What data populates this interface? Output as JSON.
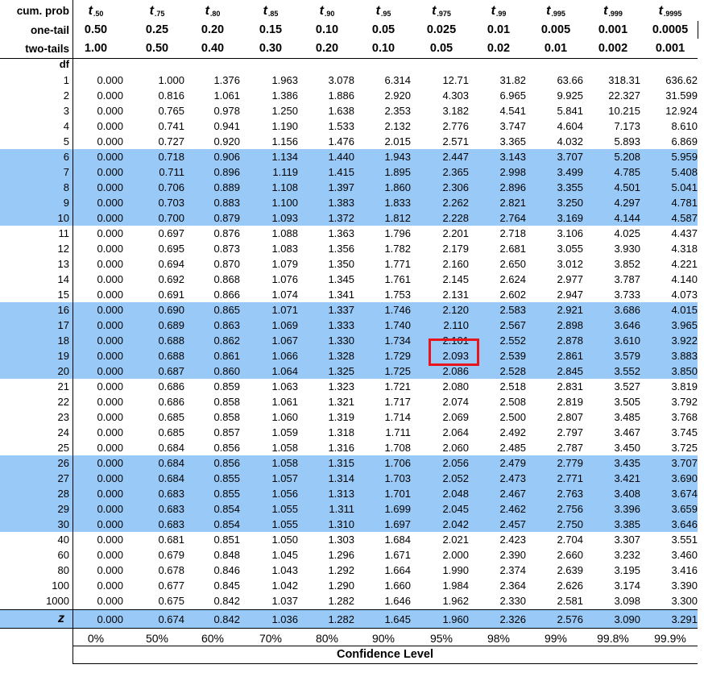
{
  "header": {
    "cum_prob_label": "cum. prob",
    "one_tail_label": "one-tail",
    "two_tails_label": "two-tails",
    "df_label": "df",
    "t_symbol": "t",
    "t_subscripts": [
      ".50",
      ".75",
      ".80",
      ".85",
      ".90",
      ".95",
      ".975",
      ".99",
      ".995",
      ".999",
      ".9995"
    ],
    "one_tail": [
      "0.50",
      "0.25",
      "0.20",
      "0.15",
      "0.10",
      "0.05",
      "0.025",
      "0.01",
      "0.005",
      "0.001",
      "0.0005"
    ],
    "two_tails": [
      "1.00",
      "0.50",
      "0.40",
      "0.30",
      "0.20",
      "0.10",
      "0.05",
      "0.02",
      "0.01",
      "0.002",
      "0.001"
    ]
  },
  "rows": [
    {
      "df": "1",
      "v": [
        "0.000",
        "1.000",
        "1.376",
        "1.963",
        "3.078",
        "6.314",
        "12.71",
        "31.82",
        "63.66",
        "318.31",
        "636.62"
      ]
    },
    {
      "df": "2",
      "v": [
        "0.000",
        "0.816",
        "1.061",
        "1.386",
        "1.886",
        "2.920",
        "4.303",
        "6.965",
        "9.925",
        "22.327",
        "31.599"
      ]
    },
    {
      "df": "3",
      "v": [
        "0.000",
        "0.765",
        "0.978",
        "1.250",
        "1.638",
        "2.353",
        "3.182",
        "4.541",
        "5.841",
        "10.215",
        "12.924"
      ]
    },
    {
      "df": "4",
      "v": [
        "0.000",
        "0.741",
        "0.941",
        "1.190",
        "1.533",
        "2.132",
        "2.776",
        "3.747",
        "4.604",
        "7.173",
        "8.610"
      ]
    },
    {
      "df": "5",
      "v": [
        "0.000",
        "0.727",
        "0.920",
        "1.156",
        "1.476",
        "2.015",
        "2.571",
        "3.365",
        "4.032",
        "5.893",
        "6.869"
      ]
    },
    {
      "df": "6",
      "v": [
        "0.000",
        "0.718",
        "0.906",
        "1.134",
        "1.440",
        "1.943",
        "2.447",
        "3.143",
        "3.707",
        "5.208",
        "5.959"
      ]
    },
    {
      "df": "7",
      "v": [
        "0.000",
        "0.711",
        "0.896",
        "1.119",
        "1.415",
        "1.895",
        "2.365",
        "2.998",
        "3.499",
        "4.785",
        "5.408"
      ]
    },
    {
      "df": "8",
      "v": [
        "0.000",
        "0.706",
        "0.889",
        "1.108",
        "1.397",
        "1.860",
        "2.306",
        "2.896",
        "3.355",
        "4.501",
        "5.041"
      ]
    },
    {
      "df": "9",
      "v": [
        "0.000",
        "0.703",
        "0.883",
        "1.100",
        "1.383",
        "1.833",
        "2.262",
        "2.821",
        "3.250",
        "4.297",
        "4.781"
      ]
    },
    {
      "df": "10",
      "v": [
        "0.000",
        "0.700",
        "0.879",
        "1.093",
        "1.372",
        "1.812",
        "2.228",
        "2.764",
        "3.169",
        "4.144",
        "4.587"
      ]
    },
    {
      "df": "11",
      "v": [
        "0.000",
        "0.697",
        "0.876",
        "1.088",
        "1.363",
        "1.796",
        "2.201",
        "2.718",
        "3.106",
        "4.025",
        "4.437"
      ]
    },
    {
      "df": "12",
      "v": [
        "0.000",
        "0.695",
        "0.873",
        "1.083",
        "1.356",
        "1.782",
        "2.179",
        "2.681",
        "3.055",
        "3.930",
        "4.318"
      ]
    },
    {
      "df": "13",
      "v": [
        "0.000",
        "0.694",
        "0.870",
        "1.079",
        "1.350",
        "1.771",
        "2.160",
        "2.650",
        "3.012",
        "3.852",
        "4.221"
      ]
    },
    {
      "df": "14",
      "v": [
        "0.000",
        "0.692",
        "0.868",
        "1.076",
        "1.345",
        "1.761",
        "2.145",
        "2.624",
        "2.977",
        "3.787",
        "4.140"
      ]
    },
    {
      "df": "15",
      "v": [
        "0.000",
        "0.691",
        "0.866",
        "1.074",
        "1.341",
        "1.753",
        "2.131",
        "2.602",
        "2.947",
        "3.733",
        "4.073"
      ]
    },
    {
      "df": "16",
      "v": [
        "0.000",
        "0.690",
        "0.865",
        "1.071",
        "1.337",
        "1.746",
        "2.120",
        "2.583",
        "2.921",
        "3.686",
        "4.015"
      ]
    },
    {
      "df": "17",
      "v": [
        "0.000",
        "0.689",
        "0.863",
        "1.069",
        "1.333",
        "1.740",
        "2.110",
        "2.567",
        "2.898",
        "3.646",
        "3.965"
      ]
    },
    {
      "df": "18",
      "v": [
        "0.000",
        "0.688",
        "0.862",
        "1.067",
        "1.330",
        "1.734",
        "2.101",
        "2.552",
        "2.878",
        "3.610",
        "3.922"
      ]
    },
    {
      "df": "19",
      "v": [
        "0.000",
        "0.688",
        "0.861",
        "1.066",
        "1.328",
        "1.729",
        "2.093",
        "2.539",
        "2.861",
        "3.579",
        "3.883"
      ]
    },
    {
      "df": "20",
      "v": [
        "0.000",
        "0.687",
        "0.860",
        "1.064",
        "1.325",
        "1.725",
        "2.086",
        "2.528",
        "2.845",
        "3.552",
        "3.850"
      ]
    },
    {
      "df": "21",
      "v": [
        "0.000",
        "0.686",
        "0.859",
        "1.063",
        "1.323",
        "1.721",
        "2.080",
        "2.518",
        "2.831",
        "3.527",
        "3.819"
      ]
    },
    {
      "df": "22",
      "v": [
        "0.000",
        "0.686",
        "0.858",
        "1.061",
        "1.321",
        "1.717",
        "2.074",
        "2.508",
        "2.819",
        "3.505",
        "3.792"
      ]
    },
    {
      "df": "23",
      "v": [
        "0.000",
        "0.685",
        "0.858",
        "1.060",
        "1.319",
        "1.714",
        "2.069",
        "2.500",
        "2.807",
        "3.485",
        "3.768"
      ]
    },
    {
      "df": "24",
      "v": [
        "0.000",
        "0.685",
        "0.857",
        "1.059",
        "1.318",
        "1.711",
        "2.064",
        "2.492",
        "2.797",
        "3.467",
        "3.745"
      ]
    },
    {
      "df": "25",
      "v": [
        "0.000",
        "0.684",
        "0.856",
        "1.058",
        "1.316",
        "1.708",
        "2.060",
        "2.485",
        "2.787",
        "3.450",
        "3.725"
      ]
    },
    {
      "df": "26",
      "v": [
        "0.000",
        "0.684",
        "0.856",
        "1.058",
        "1.315",
        "1.706",
        "2.056",
        "2.479",
        "2.779",
        "3.435",
        "3.707"
      ]
    },
    {
      "df": "27",
      "v": [
        "0.000",
        "0.684",
        "0.855",
        "1.057",
        "1.314",
        "1.703",
        "2.052",
        "2.473",
        "2.771",
        "3.421",
        "3.690"
      ]
    },
    {
      "df": "28",
      "v": [
        "0.000",
        "0.683",
        "0.855",
        "1.056",
        "1.313",
        "1.701",
        "2.048",
        "2.467",
        "2.763",
        "3.408",
        "3.674"
      ]
    },
    {
      "df": "29",
      "v": [
        "0.000",
        "0.683",
        "0.854",
        "1.055",
        "1.311",
        "1.699",
        "2.045",
        "2.462",
        "2.756",
        "3.396",
        "3.659"
      ]
    },
    {
      "df": "30",
      "v": [
        "0.000",
        "0.683",
        "0.854",
        "1.055",
        "1.310",
        "1.697",
        "2.042",
        "2.457",
        "2.750",
        "3.385",
        "3.646"
      ]
    },
    {
      "df": "40",
      "v": [
        "0.000",
        "0.681",
        "0.851",
        "1.050",
        "1.303",
        "1.684",
        "2.021",
        "2.423",
        "2.704",
        "3.307",
        "3.551"
      ]
    },
    {
      "df": "60",
      "v": [
        "0.000",
        "0.679",
        "0.848",
        "1.045",
        "1.296",
        "1.671",
        "2.000",
        "2.390",
        "2.660",
        "3.232",
        "3.460"
      ]
    },
    {
      "df": "80",
      "v": [
        "0.000",
        "0.678",
        "0.846",
        "1.043",
        "1.292",
        "1.664",
        "1.990",
        "2.374",
        "2.639",
        "3.195",
        "3.416"
      ]
    },
    {
      "df": "100",
      "v": [
        "0.000",
        "0.677",
        "0.845",
        "1.042",
        "1.290",
        "1.660",
        "1.984",
        "2.364",
        "2.626",
        "3.174",
        "3.390"
      ]
    },
    {
      "df": "1000",
      "v": [
        "0.000",
        "0.675",
        "0.842",
        "1.037",
        "1.282",
        "1.646",
        "1.962",
        "2.330",
        "2.581",
        "3.098",
        "3.300"
      ]
    }
  ],
  "z_row": {
    "label": "z",
    "v": [
      "0.000",
      "0.674",
      "0.842",
      "1.036",
      "1.282",
      "1.645",
      "1.960",
      "2.326",
      "2.576",
      "3.090",
      "3.291"
    ]
  },
  "confidence": {
    "levels": [
      "0%",
      "50%",
      "60%",
      "70%",
      "80%",
      "90%",
      "95%",
      "98%",
      "99%",
      "99.8%",
      "99.9%"
    ],
    "label": "Confidence Level"
  },
  "shaded_bands": [
    [
      "6",
      "10"
    ],
    [
      "16",
      "20"
    ],
    [
      "26",
      "30"
    ]
  ],
  "highlight": {
    "df": "19",
    "column": ".975",
    "color": "#e8151b"
  },
  "colors": {
    "band": "#99c9f7",
    "text": "#000000",
    "highlight_border": "#e8151b"
  }
}
